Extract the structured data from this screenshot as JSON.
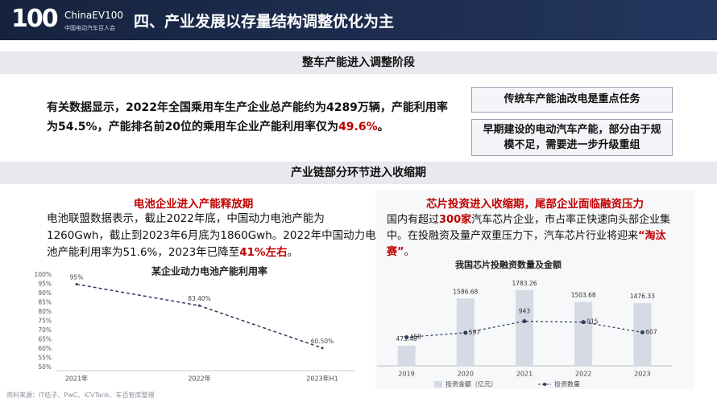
{
  "header": {
    "logo": "100",
    "logo_text": "ChinaEV100",
    "logo_sub": "中国电动汽车百人会",
    "title": "四、产业发展以存量结构调整优化为主"
  },
  "section1": {
    "title": "整车产能进入调整阶段",
    "text_parts": [
      {
        "text": "有关数据显示，2022年全国乘用车生产企业总产能约为4289万辆，产能利用率为54.5%，产能排名前20位的乘用车企业产能利用率仅为",
        "emphasis": false
      },
      {
        "text": "49.6%",
        "emphasis": true
      },
      {
        "text": "。",
        "emphasis": false
      }
    ],
    "notes": [
      "传统车产能油改电是重点任务",
      "早期建设的电动汽车产能，部分由于规模不足，需要进一步升级重组"
    ]
  },
  "section2": {
    "title": "产业链部分环节进入收缩期"
  },
  "left_panel": {
    "heading": "电池企业进入产能释放期",
    "text_parts": [
      {
        "text": "电池联盟数据表示，截止2022年底，中国动力电池产能为1260Gwh，截止到2023年6月底为1860Gwh。2022年中国动力电池产能利用率为51.6%，2023年已降至",
        "emphasis": false
      },
      {
        "text": "41%左右",
        "emphasis": true
      },
      {
        "text": "。",
        "emphasis": false
      }
    ],
    "chart": {
      "type": "line",
      "title": "某企业动力电池产能利用率",
      "categories": [
        "2021年",
        "2022年",
        "2023年H1"
      ],
      "values": [
        95,
        83.4,
        60.5
      ],
      "value_labels": [
        "95%",
        "83.40%",
        "60.50%"
      ],
      "color": "#2f3b5c",
      "ylim": [
        50,
        100
      ],
      "yticks": [
        {
          "value": 50,
          "label": "50%"
        },
        {
          "value": 55,
          "label": "55%"
        },
        {
          "value": 60,
          "label": "60%"
        },
        {
          "value": 65,
          "label": "65%"
        },
        {
          "value": 70,
          "label": "70%"
        },
        {
          "value": 75,
          "label": "75%"
        },
        {
          "value": 80,
          "label": "80%"
        },
        {
          "value": 85,
          "label": "85%"
        },
        {
          "value": 90,
          "label": "90%"
        },
        {
          "value": 95,
          "label": "95%"
        },
        {
          "value": 100,
          "label": "100%"
        }
      ]
    }
  },
  "right_panel": {
    "heading": "芯片投资进入收缩期，尾部企业面临融资压力",
    "text_parts": [
      {
        "text": "国内有超过",
        "emphasis": false
      },
      {
        "text": "300家",
        "emphasis": true
      },
      {
        "text": "汽车芯片企业，市占率正快速向头部企业集中。在投融资及量产双重压力下，汽车芯片行业将迎来",
        "emphasis": false
      },
      {
        "text": "“淘汰赛”",
        "emphasis": true
      },
      {
        "text": "。",
        "emphasis": false
      }
    ],
    "chart": {
      "type": "bar-line",
      "title": "我国芯片投融资数量及金额",
      "categories": [
        "2019",
        "2020",
        "2021",
        "2022",
        "2023"
      ],
      "ylim": [
        0,
        1800
      ],
      "y2lim": [
        -400,
        1900
      ],
      "series": [
        {
          "name": "投资金额（亿元）",
          "type": "bar",
          "color": "#d5dae4",
          "values": [
            473.48,
            1586.68,
            1783.26,
            1503.68,
            1476.33
          ]
        },
        {
          "name": "投资数量",
          "type": "line",
          "axis": "y2",
          "color": "#2f3b5c",
          "values": [
            458,
            597,
            943,
            915,
            607
          ]
        }
      ]
    }
  },
  "source": "资料来源：IT桔子、PwC、iCVTank、车百智库整理"
}
